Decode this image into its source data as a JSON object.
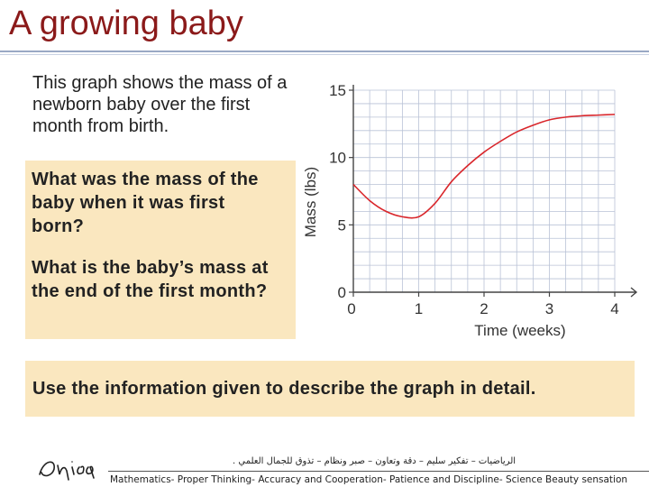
{
  "slide": {
    "title": "A growing baby",
    "intro": "This graph shows the mass of a newborn baby over the first month from birth.",
    "question1": "What was the mass of the baby when it was first born?",
    "question2": "What is the baby’s mass at the end of the first month?",
    "task": "Use the information given to describe the graph in detail."
  },
  "footer": {
    "arabic": "الرياضيات – تفكير سليم – دقة وتعاون – صبر ونظام – تذوق للجمال العلمي .",
    "english": "Mathematics- Proper Thinking- Accuracy and Cooperation- Patience and Discipline- Science Beauty sensation",
    "logo": "Oujiyo"
  },
  "colors": {
    "title": "#8b1a1a",
    "box": "#fae7bf",
    "curve": "#d9262b",
    "grid": "#b9c2d6"
  },
  "chart_data": {
    "type": "line",
    "xlabel": "Time (weeks)",
    "ylabel": "Mass (lbs)",
    "xlim": [
      0,
      4
    ],
    "ylim": [
      0,
      15
    ],
    "x_ticks": [
      "0",
      "1",
      "2",
      "3",
      "4"
    ],
    "y_ticks": [
      "0",
      "5",
      "10",
      "15"
    ],
    "grid": true,
    "series": [
      {
        "x": [
          0,
          0.25,
          0.5,
          0.75,
          1.0,
          1.25,
          1.5,
          1.75,
          2.0,
          2.25,
          2.5,
          2.75,
          3.0,
          3.25,
          3.5,
          3.75,
          4.0
        ],
        "values": [
          8.0,
          6.8,
          6.0,
          5.6,
          5.6,
          6.6,
          8.2,
          9.4,
          10.4,
          11.2,
          11.9,
          12.4,
          12.8,
          13.0,
          13.1,
          13.15,
          13.2
        ]
      }
    ]
  }
}
